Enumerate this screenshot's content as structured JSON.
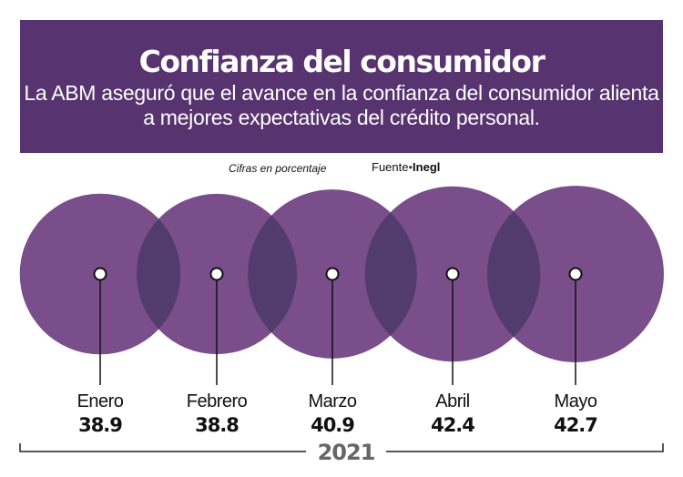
{
  "header": {
    "title": "Confianza del consumidor",
    "subtitle": "La ABM aseguró que el avance en la confianza del consumidor alienta a mejores expectativas del crédito personal."
  },
  "note": "Cifras en porcentaje",
  "source": {
    "label": "Fuente",
    "name": "Inegl"
  },
  "colors": {
    "header": "#57336f",
    "circle": "#7a4e8a",
    "overlap": "#523c6e"
  },
  "chart_data": {
    "type": "bubble",
    "categories": [
      "Enero",
      "Febrero",
      "Marzo",
      "Abril",
      "Mayo"
    ],
    "values": [
      38.9,
      38.8,
      40.9,
      42.4,
      42.7
    ],
    "value_labels": [
      "38.9",
      "38.8",
      "40.9",
      "42.4",
      "42.7"
    ],
    "group_label": "2021",
    "unit": "porcentaje"
  }
}
